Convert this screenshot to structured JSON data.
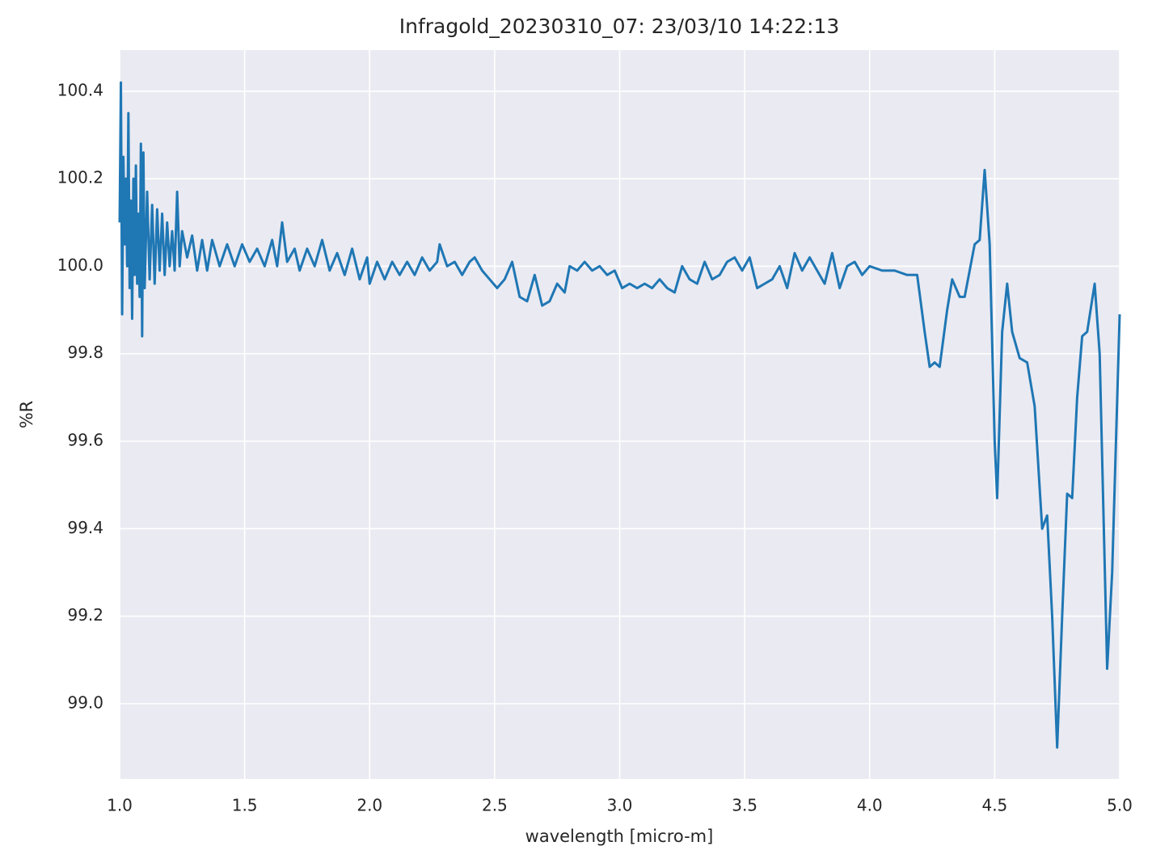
{
  "chart_data": {
    "type": "line",
    "title": "Infragold_20230310_07:  23/03/10 14:22:13",
    "x_label": "wavelength [micro-m]",
    "y_label": "%R",
    "grid": true,
    "xlim": [
      1.0,
      5.0
    ],
    "ylim": [
      98.828,
      100.494
    ],
    "xticks": [
      {
        "value": 1.0,
        "label": "1.0"
      },
      1.5,
      {
        "value": 2.0,
        "label": "2.0"
      },
      2.5,
      {
        "value": 3.0,
        "label": "3.0"
      },
      3.5,
      {
        "value": 4.0,
        "label": "4.0"
      },
      4.5,
      {
        "value": 5.0,
        "label": "5.0"
      }
    ],
    "yticks": [
      {
        "value": 99.0,
        "label": "99.0"
      },
      99.2,
      99.4,
      99.6,
      99.8,
      {
        "value": 100.0,
        "label": "100.0"
      },
      100.2,
      100.4
    ],
    "x": [
      1.0,
      1.005,
      1.01,
      1.015,
      1.02,
      1.025,
      1.03,
      1.035,
      1.04,
      1.045,
      1.05,
      1.055,
      1.06,
      1.065,
      1.07,
      1.075,
      1.08,
      1.085,
      1.09,
      1.095,
      1.1,
      1.11,
      1.12,
      1.13,
      1.14,
      1.15,
      1.16,
      1.17,
      1.18,
      1.19,
      1.2,
      1.21,
      1.22,
      1.23,
      1.24,
      1.25,
      1.27,
      1.29,
      1.31,
      1.33,
      1.35,
      1.37,
      1.4,
      1.43,
      1.46,
      1.49,
      1.52,
      1.55,
      1.58,
      1.61,
      1.63,
      1.65,
      1.67,
      1.7,
      1.72,
      1.75,
      1.78,
      1.81,
      1.84,
      1.87,
      1.9,
      1.93,
      1.96,
      1.99,
      2.0,
      2.03,
      2.06,
      2.09,
      2.12,
      2.15,
      2.18,
      2.21,
      2.24,
      2.27,
      2.28,
      2.31,
      2.34,
      2.37,
      2.4,
      2.42,
      2.45,
      2.48,
      2.51,
      2.54,
      2.57,
      2.6,
      2.63,
      2.66,
      2.69,
      2.72,
      2.75,
      2.78,
      2.8,
      2.83,
      2.86,
      2.89,
      2.92,
      2.95,
      2.98,
      3.01,
      3.04,
      3.07,
      3.1,
      3.13,
      3.16,
      3.19,
      3.22,
      3.25,
      3.28,
      3.31,
      3.34,
      3.37,
      3.4,
      3.43,
      3.46,
      3.49,
      3.52,
      3.55,
      3.58,
      3.61,
      3.64,
      3.67,
      3.7,
      3.73,
      3.76,
      3.79,
      3.82,
      3.85,
      3.88,
      3.91,
      3.94,
      3.97,
      4.0,
      4.05,
      4.1,
      4.15,
      4.19,
      4.22,
      4.24,
      4.26,
      4.28,
      4.31,
      4.33,
      4.36,
      4.38,
      4.42,
      4.44,
      4.46,
      4.48,
      4.5,
      4.51,
      4.53,
      4.55,
      4.57,
      4.6,
      4.63,
      4.66,
      4.69,
      4.71,
      4.73,
      4.75,
      4.77,
      4.79,
      4.81,
      4.83,
      4.85,
      4.87,
      4.9,
      4.92,
      4.95,
      4.97,
      5.0
    ],
    "series": [
      {
        "color": "#1f77b4",
        "values": [
          100.1,
          100.42,
          99.89,
          100.25,
          100.05,
          100.2,
          100.0,
          100.35,
          99.95,
          100.15,
          99.88,
          100.2,
          99.98,
          100.23,
          99.96,
          100.12,
          99.93,
          100.28,
          99.84,
          100.26,
          99.95,
          100.17,
          99.97,
          100.14,
          99.96,
          100.13,
          99.99,
          100.12,
          99.98,
          100.1,
          100.0,
          100.08,
          99.99,
          100.17,
          100.0,
          100.08,
          100.02,
          100.07,
          99.99,
          100.06,
          99.99,
          100.06,
          100.0,
          100.05,
          100.0,
          100.05,
          100.01,
          100.04,
          100.0,
          100.06,
          100.0,
          100.1,
          100.01,
          100.04,
          99.99,
          100.04,
          100.0,
          100.06,
          99.99,
          100.03,
          99.98,
          100.04,
          99.97,
          100.02,
          99.96,
          100.01,
          99.97,
          100.01,
          99.98,
          100.01,
          99.98,
          100.02,
          99.99,
          100.01,
          100.05,
          100.0,
          100.01,
          99.98,
          100.01,
          100.02,
          99.99,
          99.97,
          99.95,
          99.97,
          100.01,
          99.93,
          99.92,
          99.98,
          99.91,
          99.92,
          99.96,
          99.94,
          100.0,
          99.99,
          100.01,
          99.99,
          100.0,
          99.98,
          99.99,
          99.95,
          99.96,
          99.95,
          99.96,
          99.95,
          99.97,
          99.95,
          99.94,
          100.0,
          99.97,
          99.96,
          100.01,
          99.97,
          99.98,
          100.01,
          100.02,
          99.99,
          100.02,
          99.95,
          99.96,
          99.97,
          100.0,
          99.95,
          100.03,
          99.99,
          100.02,
          99.99,
          99.96,
          100.03,
          99.95,
          100.0,
          100.01,
          99.98,
          100.0,
          99.99,
          99.99,
          99.98,
          99.98,
          99.85,
          99.77,
          99.78,
          99.77,
          99.9,
          99.97,
          99.93,
          99.93,
          100.05,
          100.06,
          100.22,
          100.05,
          99.6,
          99.47,
          99.85,
          99.96,
          99.85,
          99.79,
          99.78,
          99.68,
          99.4,
          99.43,
          99.2,
          98.9,
          99.2,
          99.48,
          99.47,
          99.7,
          99.84,
          99.85,
          99.96,
          99.8,
          99.08,
          99.3,
          99.89
        ]
      }
    ]
  }
}
